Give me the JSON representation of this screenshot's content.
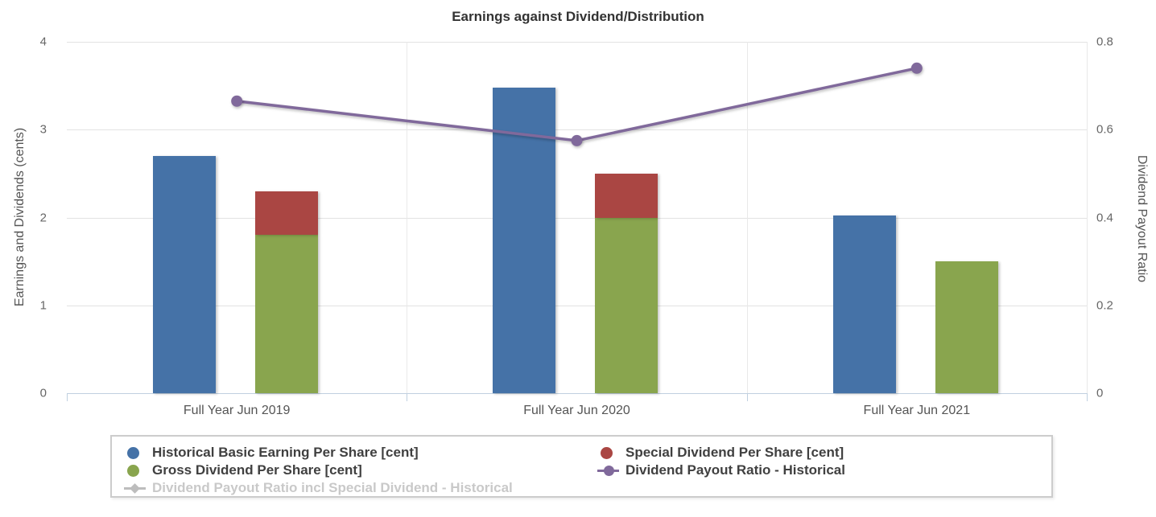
{
  "title": "Earnings against Dividend/Distribution",
  "left_axis": {
    "title": "Earnings and Dividends (cents)",
    "ticks": [
      0,
      1,
      2,
      3,
      4
    ],
    "min": 0,
    "max": 4
  },
  "right_axis": {
    "title": "Dividend Payout Ratio",
    "ticks": [
      0,
      0.2,
      0.4,
      0.6,
      0.8
    ],
    "tick_labels": [
      "0",
      "0.2",
      "0.4",
      "0.6",
      "0.8"
    ],
    "min": 0,
    "max": 0.8
  },
  "legend": {
    "items": [
      {
        "label": "Historical Basic Earning Per Share [cent]",
        "marker": "circle",
        "color": "#4572A7",
        "disabled": false
      },
      {
        "label": "Special Dividend Per Share [cent]",
        "marker": "circle",
        "color": "#AA4643",
        "disabled": false
      },
      {
        "label": "Gross Dividend Per Share [cent]",
        "marker": "circle",
        "color": "#89A54E",
        "disabled": false
      },
      {
        "label": "Dividend Payout Ratio - Historical",
        "marker": "line-circle",
        "color": "#80699B",
        "disabled": false
      },
      {
        "label": "Dividend Payout Ratio incl Special Dividend - Historical",
        "marker": "line-diamond",
        "color": "#BDBDBD",
        "disabled": true
      }
    ]
  },
  "chart_data": {
    "type": "combo",
    "title": "Earnings against Dividend/Distribution",
    "categories": [
      "Full Year Jun 2019",
      "Full Year Jun 2020",
      "Full Year Jun 2021"
    ],
    "series": [
      {
        "name": "Historical Basic Earning Per Share [cent]",
        "type": "column",
        "color": "#4572A7",
        "axis": "left",
        "values": [
          2.7,
          3.48,
          2.02
        ]
      },
      {
        "name": "Gross Dividend Per Share [cent]",
        "type": "column",
        "stack": "dividend",
        "color": "#89A54E",
        "axis": "left",
        "values": [
          1.8,
          2.0,
          1.5
        ]
      },
      {
        "name": "Special Dividend Per Share [cent]",
        "type": "column",
        "stack": "dividend",
        "color": "#AA4643",
        "axis": "left",
        "values": [
          0.5,
          0.5,
          0
        ]
      },
      {
        "name": "Dividend Payout Ratio - Historical",
        "type": "line",
        "color": "#80699B",
        "axis": "right",
        "values": [
          0.665,
          0.575,
          0.74
        ]
      },
      {
        "name": "Dividend Payout Ratio incl Special Dividend - Historical",
        "type": "line",
        "color": "#BDBDBD",
        "axis": "right",
        "visible": false,
        "values": null
      }
    ],
    "ylabel_left": "Earnings and Dividends (cents)",
    "ylabel_right": "Dividend Payout Ratio",
    "ylim_left": [
      0,
      4
    ],
    "ylim_right": [
      0,
      0.8
    ],
    "grid": true,
    "legend_position": "bottom"
  }
}
